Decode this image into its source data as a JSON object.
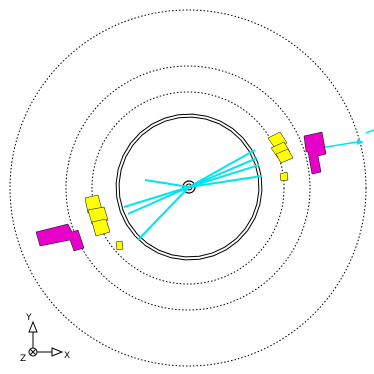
{
  "colors": {
    "track": "#00e5ef",
    "calorimeter_hit": "#ffff00",
    "muon_hit": "#e600c8",
    "detector_outline": "#000000"
  },
  "axes": {
    "y_label": "Y",
    "x_label": "X",
    "z_label": "Z"
  }
}
